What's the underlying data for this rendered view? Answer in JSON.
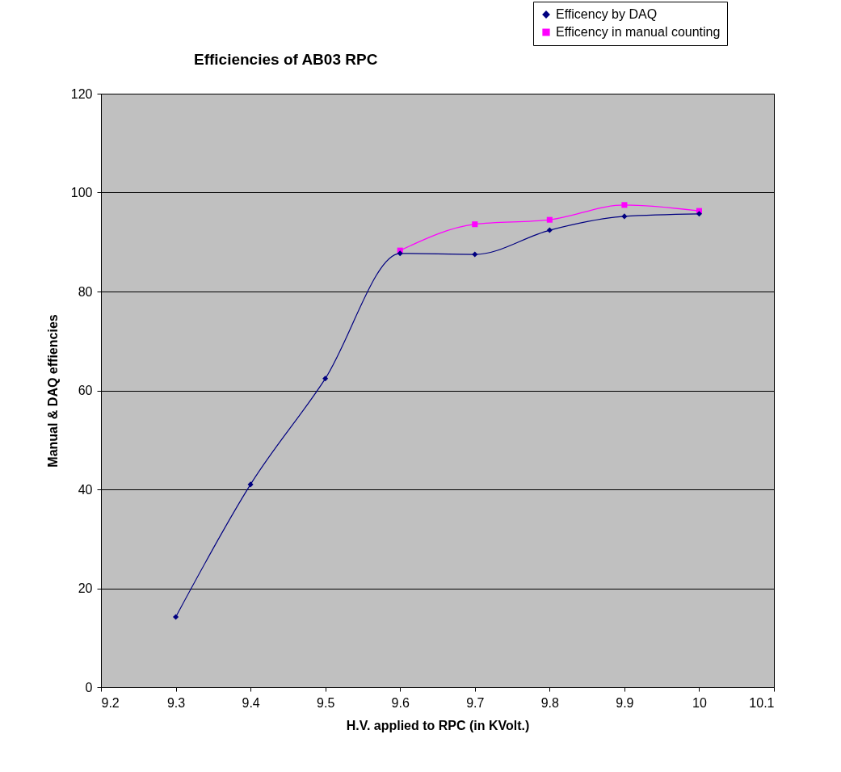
{
  "chart_data": {
    "type": "line",
    "title": "Efficiencies of AB03 RPC",
    "xlabel": "H.V. applied to RPC (in KVolt.)",
    "ylabel": "Manual & DAQ effiencies",
    "x": [
      9.3,
      9.4,
      9.5,
      9.6,
      9.7,
      9.8,
      9.9,
      10
    ],
    "series": [
      {
        "name": "Efficency by DAQ",
        "color": "#000080",
        "marker": "diamond",
        "values": [
          14.2,
          41.0,
          62.4,
          87.7,
          87.5,
          92.4,
          95.2,
          95.7
        ]
      },
      {
        "name": "Efficency in manual counting",
        "color": "#ff00ff",
        "marker": "square",
        "x": [
          9.6,
          9.7,
          9.8,
          9.9,
          10
        ],
        "values": [
          88.3,
          93.6,
          94.5,
          97.5,
          96.3
        ]
      }
    ],
    "xlim": [
      9.2,
      10.1
    ],
    "xticks": [
      9.2,
      9.3,
      9.4,
      9.5,
      9.6,
      9.7,
      9.8,
      9.9,
      10,
      10.1
    ],
    "ylim": [
      0,
      120
    ],
    "yticks": [
      0,
      20,
      40,
      60,
      80,
      100,
      120
    ],
    "grid": "y",
    "legend": "top right"
  }
}
